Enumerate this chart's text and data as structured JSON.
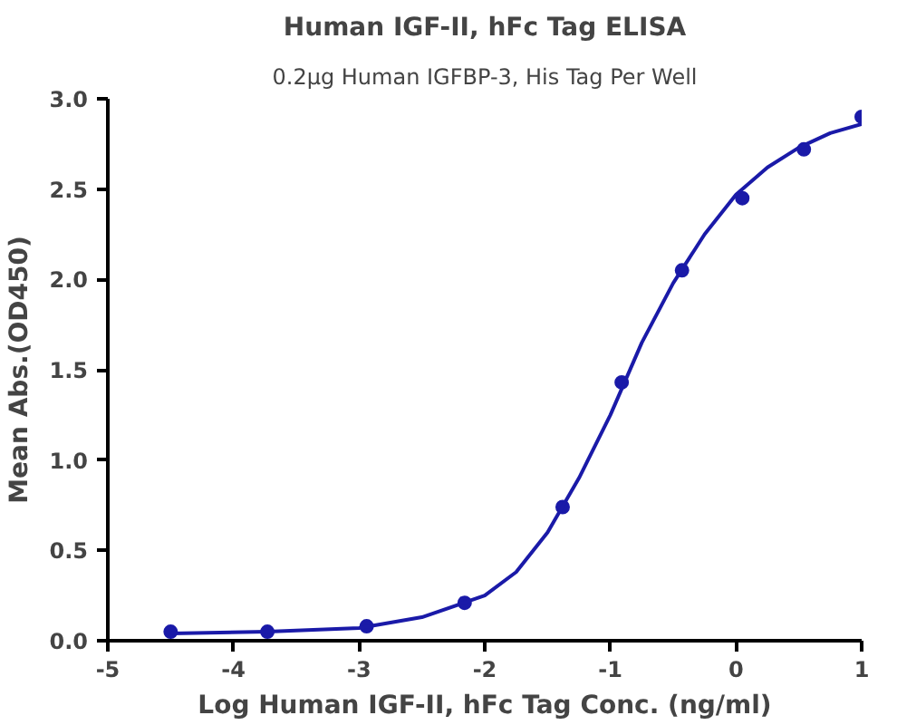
{
  "chart_data": {
    "type": "scatter",
    "title": "Human IGF-II, hFc Tag ELISA",
    "subtitle": "0.2μg Human IGFBP-3, His Tag Per Well",
    "xlabel": "Log Human IGF-II, hFc Tag Conc. (ng/ml)",
    "ylabel": "Mean Abs.(OD450)",
    "xlim": [
      -5,
      1
    ],
    "xticks": [
      -5,
      -4,
      -3,
      -2,
      -1,
      0,
      1
    ],
    "ylim": [
      0,
      3
    ],
    "yticks": [
      {
        "value": 0,
        "label": "0.0"
      },
      {
        "value": 0.5,
        "label": "0.5"
      },
      {
        "value": 1,
        "label": "1.0"
      },
      {
        "value": 1.5,
        "label": "1.5"
      },
      {
        "value": 2,
        "label": "2.0"
      },
      {
        "value": 2.5,
        "label": "2.5"
      },
      {
        "value": 3,
        "label": "3.0"
      }
    ],
    "grid": false,
    "series": [
      {
        "marker": "circle",
        "color": "#1a1aa8",
        "x": [
          -4.5,
          -3.73,
          -2.94,
          -2.16,
          -1.38,
          -0.91,
          -0.43,
          0.05,
          0.54,
          1.0
        ],
        "values": [
          0.05,
          0.05,
          0.08,
          0.21,
          0.74,
          1.43,
          2.05,
          2.45,
          2.72,
          2.9
        ]
      },
      {
        "type": "line",
        "color": "#1a1aa8",
        "x": [
          -4.5,
          -3.73,
          -3,
          -2.5,
          -2,
          -1.75,
          -1.5,
          -1.25,
          -1,
          -0.75,
          -0.5,
          -0.25,
          0,
          0.25,
          0.5,
          0.75,
          1.0
        ],
        "values": [
          0.04,
          0.05,
          0.07,
          0.13,
          0.25,
          0.38,
          0.6,
          0.9,
          1.25,
          1.65,
          1.98,
          2.25,
          2.47,
          2.62,
          2.73,
          2.81,
          2.86
        ]
      }
    ]
  }
}
